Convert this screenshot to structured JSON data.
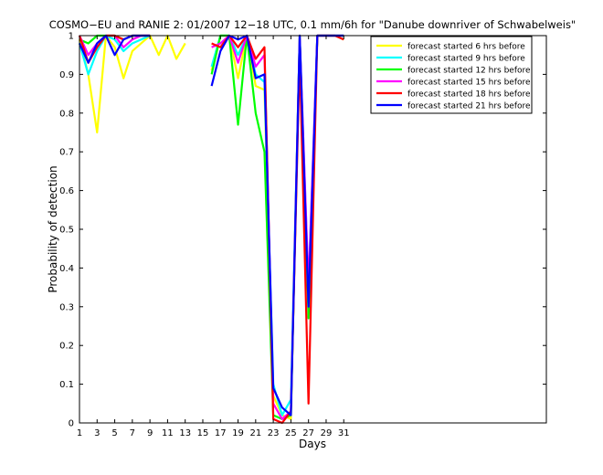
{
  "chart_data": {
    "type": "line",
    "title": "COSMO−EU and RANIE 2: 01/2007 12−18 UTC, 0.1 mm/6h for \"Danube downriver of Schwabelweis\"",
    "xlabel": "Days",
    "ylabel": "Probability of detection",
    "xlim": [
      1,
      54
    ],
    "ylim": [
      0,
      1
    ],
    "x_ticks": [
      1,
      3,
      5,
      7,
      9,
      11,
      13,
      15,
      17,
      19,
      21,
      23,
      25,
      27,
      29,
      31
    ],
    "y_ticks": [
      0,
      0.1,
      0.2,
      0.3,
      0.4,
      0.5,
      0.6,
      0.7,
      0.8,
      0.9,
      1
    ],
    "y_tick_labels": [
      "0",
      "0.1",
      "0.2",
      "0.3",
      "0.4",
      "0.5",
      "0.6",
      "0.7",
      "0.8",
      "0.9",
      "1"
    ],
    "grid": false,
    "legend_position": "top-right",
    "x": [
      1,
      2,
      3,
      4,
      5,
      6,
      7,
      8,
      9,
      10,
      11,
      12,
      13,
      14,
      15,
      16,
      17,
      18,
      19,
      20,
      21,
      22,
      23,
      24,
      25,
      26,
      27,
      28,
      29,
      30,
      31
    ],
    "series": [
      {
        "name": "forecast started 6 hrs before",
        "color": "#ffff00",
        "values": [
          0.99,
          0.9,
          0.75,
          1,
          0.97,
          0.89,
          0.96,
          0.98,
          1,
          0.95,
          1,
          0.94,
          0.98,
          null,
          null,
          0.91,
          1,
          1,
          0.89,
          1,
          0.87,
          0.86,
          0.07,
          0.02,
          0.01,
          1,
          0.3,
          1,
          1,
          1,
          0.99
        ]
      },
      {
        "name": "forecast started 9 hrs before",
        "color": "#00ffff",
        "values": [
          0.98,
          0.9,
          0.96,
          1,
          0.99,
          0.96,
          0.98,
          0.99,
          1,
          null,
          null,
          null,
          null,
          null,
          null,
          0.92,
          1,
          1,
          0.95,
          1,
          0.9,
          0.88,
          0.1,
          0.02,
          0.06,
          1,
          0.35,
          1,
          1,
          1,
          1
        ]
      },
      {
        "name": "forecast started 12 hrs before",
        "color": "#00ff00",
        "values": [
          0.99,
          0.98,
          1,
          1,
          1,
          0.99,
          1,
          1,
          1,
          null,
          null,
          null,
          null,
          null,
          null,
          0.9,
          1,
          1,
          0.77,
          1,
          0.8,
          0.7,
          0.02,
          0.01,
          0.02,
          1,
          0.27,
          1,
          1,
          1,
          1
        ]
      },
      {
        "name": "forecast started 15 hrs before",
        "color": "#ff00ff",
        "values": [
          1,
          0.95,
          0.98,
          1,
          1,
          0.97,
          0.99,
          1,
          1,
          null,
          null,
          null,
          null,
          null,
          null,
          0.97,
          0.98,
          1,
          0.93,
          1,
          0.92,
          0.95,
          0.05,
          0.01,
          0.03,
          1,
          0.35,
          1,
          1,
          1,
          1
        ]
      },
      {
        "name": "forecast started 18 hrs before",
        "color": "#ff0000",
        "values": [
          1,
          0.93,
          0.97,
          1,
          1,
          0.99,
          1,
          1,
          1,
          null,
          null,
          null,
          null,
          null,
          null,
          0.98,
          0.97,
          1,
          0.97,
          1,
          0.94,
          0.97,
          0.01,
          0.0,
          0.03,
          0.95,
          0.05,
          1,
          1,
          1,
          0.99
        ]
      },
      {
        "name": "forecast started 21 hrs before",
        "color": "#0000ff",
        "values": [
          0.98,
          0.93,
          0.98,
          1,
          0.95,
          0.99,
          1,
          1,
          1,
          null,
          null,
          null,
          null,
          null,
          null,
          0.87,
          0.96,
          1,
          0.99,
          1,
          0.89,
          0.9,
          0.09,
          0.04,
          0.02,
          1,
          0.3,
          1,
          1,
          1,
          1
        ]
      }
    ]
  }
}
